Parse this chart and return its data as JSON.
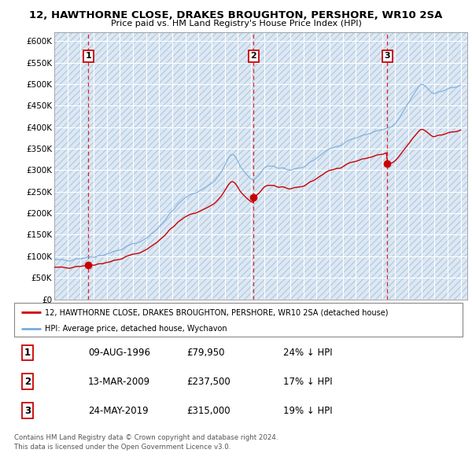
{
  "title": "12, HAWTHORNE CLOSE, DRAKES BROUGHTON, PERSHORE, WR10 2SA",
  "subtitle": "Price paid vs. HM Land Registry's House Price Index (HPI)",
  "ylim": [
    0,
    620000
  ],
  "yticks": [
    0,
    50000,
    100000,
    150000,
    200000,
    250000,
    300000,
    350000,
    400000,
    450000,
    500000,
    550000,
    600000
  ],
  "ytick_labels": [
    "£0",
    "£50K",
    "£100K",
    "£150K",
    "£200K",
    "£250K",
    "£300K",
    "£350K",
    "£400K",
    "£450K",
    "£500K",
    "£550K",
    "£600K"
  ],
  "xlim_start": 1994.0,
  "xlim_end": 2025.5,
  "sales": [
    {
      "date_num": 1996.6,
      "price": 79950,
      "label": "1",
      "date_str": "09-AUG-1996",
      "pct": "24%"
    },
    {
      "date_num": 2009.2,
      "price": 237500,
      "label": "2",
      "date_str": "13-MAR-2009",
      "pct": "17%"
    },
    {
      "date_num": 2019.4,
      "price": 315000,
      "label": "3",
      "date_str": "24-MAY-2019",
      "pct": "19%"
    }
  ],
  "red_line_color": "#cc0000",
  "blue_line_color": "#7aaddc",
  "chart_bg": "#dce8f5",
  "hatch_bg": "#dce8f5",
  "legend_line1": "12, HAWTHORNE CLOSE, DRAKES BROUGHTON, PERSHORE, WR10 2SA (detached house)",
  "legend_line2": "HPI: Average price, detached house, Wychavon",
  "footer1": "Contains HM Land Registry data © Crown copyright and database right 2024.",
  "footer2": "This data is licensed under the Open Government Licence v3.0.",
  "table_rows": [
    [
      "1",
      "09-AUG-1996",
      "£79,950",
      "24% ↓ HPI"
    ],
    [
      "2",
      "13-MAR-2009",
      "£237,500",
      "17% ↓ HPI"
    ],
    [
      "3",
      "24-MAY-2019",
      "£315,000",
      "19% ↓ HPI"
    ]
  ]
}
